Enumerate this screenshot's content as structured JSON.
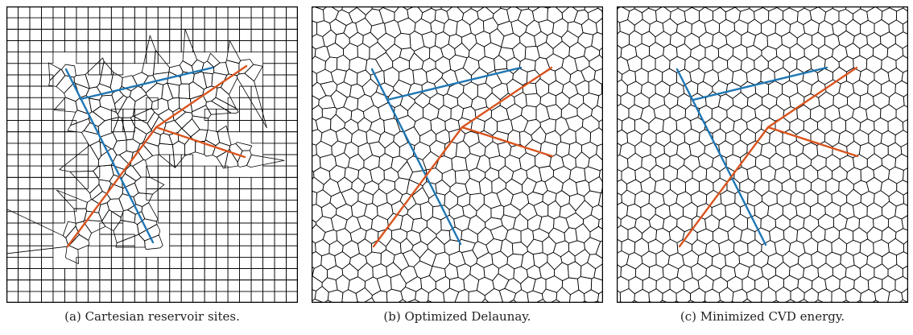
{
  "figure": {
    "panels": [
      {
        "id": "a",
        "caption": "(a) Cartesian reservoir sites.",
        "mesh_style": "cartesian-with-voronoi-near-fractures"
      },
      {
        "id": "b",
        "caption": "(b) Optimized Delaunay.",
        "mesh_style": "voronoi"
      },
      {
        "id": "c",
        "caption": "(c) Minimized CVD energy.",
        "mesh_style": "voronoi"
      }
    ],
    "colors": {
      "fracture_blue": "#1f77b4",
      "fracture_orange": "#d9541e",
      "mesh": "#000000",
      "background": "#ffffff"
    }
  }
}
